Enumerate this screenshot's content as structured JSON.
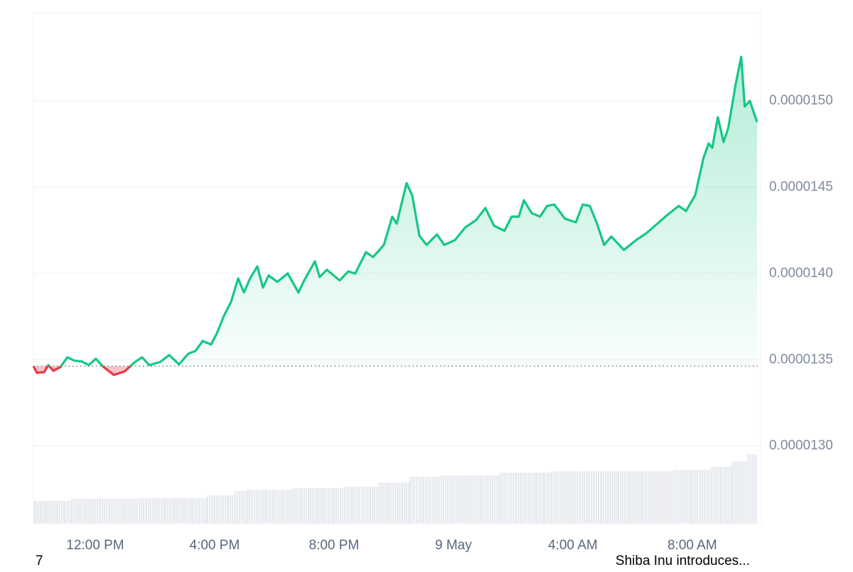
{
  "chart_data": {
    "type": "line",
    "x": [
      9.93,
      10.05,
      10.29,
      10.43,
      10.6,
      10.83,
      11.07,
      11.31,
      11.55,
      11.79,
      12.02,
      12.26,
      12.62,
      12.98,
      13.33,
      13.57,
      13.81,
      14.17,
      14.48,
      14.81,
      15.12,
      15.36,
      15.6,
      15.88,
      16.07,
      16.31,
      16.55,
      16.79,
      16.98,
      17.19,
      17.43,
      17.62,
      17.81,
      18.1,
      18.45,
      18.81,
      19.0,
      19.36,
      19.52,
      19.76,
      20.19,
      20.48,
      20.71,
      21.07,
      21.31,
      21.67,
      21.95,
      22.1,
      22.43,
      22.62,
      22.86,
      23.1,
      23.45,
      23.69,
      24.05,
      24.4,
      24.76,
      25.07,
      25.36,
      25.71,
      25.95,
      26.19,
      26.36,
      26.62,
      26.9,
      27.14,
      27.38,
      27.74,
      28.1,
      28.33,
      28.57,
      28.81,
      29.05,
      29.29,
      29.71,
      30.12,
      30.48,
      30.83,
      31.19,
      31.55,
      31.79,
      32.1,
      32.38,
      32.55,
      32.67,
      32.86,
      33.05,
      33.21,
      33.45,
      33.64,
      33.76,
      33.93,
      34.17
    ],
    "series": [
      {
        "color": "#16c784",
        "negative_color": "#ea3943",
        "values": [
          1.3463e-05,
          1.3424e-05,
          1.3428e-05,
          1.3469e-05,
          1.3436e-05,
          1.3457e-05,
          1.3514e-05,
          1.3494e-05,
          1.349e-05,
          1.3469e-05,
          1.3506e-05,
          1.3461e-05,
          1.3412e-05,
          1.3432e-05,
          1.3486e-05,
          1.3514e-05,
          1.3469e-05,
          1.3486e-05,
          1.3527e-05,
          1.3473e-05,
          1.3535e-05,
          1.3551e-05,
          1.3609e-05,
          1.3588e-05,
          1.365e-05,
          1.3753e-05,
          1.3835e-05,
          1.3971e-05,
          1.3889e-05,
          1.3971e-05,
          1.4041e-05,
          1.3918e-05,
          1.3988e-05,
          1.3951e-05,
          1.4e-05,
          1.3889e-05,
          1.3959e-05,
          1.407e-05,
          1.3979e-05,
          1.4021e-05,
          1.3959e-05,
          1.4012e-05,
          1.3999e-05,
          1.4123e-05,
          1.4095e-05,
          1.4165e-05,
          1.4329e-05,
          1.4288e-05,
          1.4523e-05,
          1.4453e-05,
          1.4218e-05,
          1.4165e-05,
          1.4226e-05,
          1.4165e-05,
          1.4193e-05,
          1.4267e-05,
          1.4309e-05,
          1.4379e-05,
          1.4276e-05,
          1.4247e-05,
          1.4329e-05,
          1.4329e-05,
          1.4424e-05,
          1.435e-05,
          1.4329e-05,
          1.4391e-05,
          1.4399e-05,
          1.4317e-05,
          1.4296e-05,
          1.4399e-05,
          1.4391e-05,
          1.4288e-05,
          1.4165e-05,
          1.4214e-05,
          1.4136e-05,
          1.4193e-05,
          1.4235e-05,
          1.4288e-05,
          1.4342e-05,
          1.4391e-05,
          1.4362e-05,
          1.4453e-05,
          1.4671e-05,
          1.4753e-05,
          1.4728e-05,
          1.4905e-05,
          1.4761e-05,
          1.4844e-05,
          1.5091e-05,
          1.5255e-05,
          1.4967e-05,
          1.5e-05,
          1.4877e-05
        ]
      }
    ],
    "baseline": 1.3463e-05,
    "volume": {
      "color": "#e6e9ee",
      "ylim": [
        0,
        720
      ],
      "values": [
        32,
        32,
        32,
        32,
        32,
        32,
        32,
        35,
        35,
        35,
        35,
        35,
        35,
        35,
        35,
        36,
        36,
        36,
        36,
        36,
        36,
        36,
        36,
        40,
        40,
        40,
        40,
        46,
        46,
        48,
        48,
        48,
        48,
        48,
        48,
        50,
        50,
        50,
        50,
        50,
        50,
        52,
        52,
        52,
        52,
        58,
        58,
        58,
        58,
        66,
        66,
        66,
        66,
        68,
        68,
        68,
        68,
        68,
        68,
        72,
        72,
        72,
        72,
        72,
        72,
        72,
        74,
        74,
        74,
        74,
        74,
        74,
        74,
        74,
        74,
        74,
        74,
        74,
        74,
        76,
        76,
        76,
        76,
        76,
        80,
        80,
        80,
        80,
        88,
        88,
        88,
        98,
        98
      ]
    },
    "xlim": [
      9.93,
      34.29
    ],
    "xticks": [
      {
        "value": 12,
        "label": "12:00 PM"
      },
      {
        "value": 16,
        "label": "4:00 PM"
      },
      {
        "value": 20,
        "label": "8:00 PM"
      },
      {
        "value": 24,
        "label": "9 May"
      },
      {
        "value": 28,
        "label": "4:00 AM"
      },
      {
        "value": 32,
        "label": "8:00 AM"
      }
    ],
    "ylim": [
      1.255e-05,
      1.551e-05
    ],
    "yticks": [
      {
        "value": 1.3e-05,
        "label": "0.0000130"
      },
      {
        "value": 1.35e-05,
        "label": "0.0000135"
      },
      {
        "value": 1.4e-05,
        "label": "0.0000140"
      },
      {
        "value": 1.45e-05,
        "label": "0.0000145"
      },
      {
        "value": 1.5e-05,
        "label": "0.0000150"
      }
    ],
    "grid": true,
    "footer_left": "7",
    "footer_right": "Shiba Inu introduces..."
  }
}
